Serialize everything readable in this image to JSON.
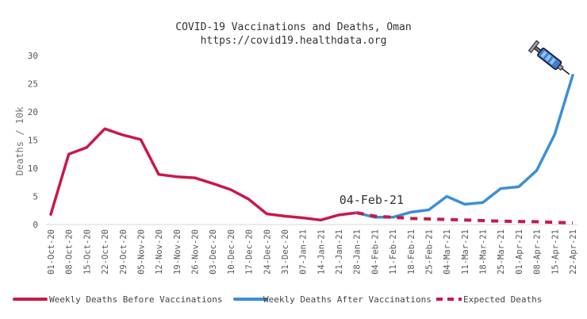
{
  "chart_data": {
    "type": "line",
    "title_line1": "COVID-19 Vaccinations and Deaths, Oman",
    "title_line2": "https://covid19.healthdata.org",
    "xlabel": "",
    "ylabel": "Deaths / 10k",
    "ylim": [
      0,
      30
    ],
    "yticks": [
      0,
      5,
      10,
      15,
      20,
      25,
      30
    ],
    "grid": false,
    "legend_position": "bottom",
    "categories": [
      "01-Oct-20",
      "08-Oct-20",
      "15-Oct-20",
      "22-Oct-20",
      "29-Oct-20",
      "05-Nov-20",
      "12-Nov-20",
      "19-Nov-20",
      "26-Nov-20",
      "03-Dec-20",
      "10-Dec-20",
      "17-Dec-20",
      "24-Dec-20",
      "31-Dec-20",
      "07-Jan-21",
      "14-Jan-21",
      "21-Jan-21",
      "28-Jan-21",
      "04-Feb-21",
      "11-Feb-21",
      "18-Feb-21",
      "25-Feb-21",
      "04-Mar-21",
      "11-Mar-21",
      "18-Mar-21",
      "25-Mar-21",
      "01-Apr-21",
      "08-Apr-21",
      "15-Apr-21",
      "22-Apr-21"
    ],
    "series": [
      {
        "name": "Weekly Deaths Before Vaccinations",
        "color": "#c8184a",
        "style": "solid",
        "values": [
          1.8,
          12.5,
          13.7,
          17.0,
          15.9,
          15.1,
          8.9,
          8.5,
          8.3,
          7.3,
          6.2,
          4.5,
          1.9,
          1.5,
          1.2,
          0.8,
          1.7,
          2.1,
          null,
          null,
          null,
          null,
          null,
          null,
          null,
          null,
          null,
          null,
          null,
          null
        ]
      },
      {
        "name": "Weekly Deaths After Vaccinations",
        "color": "#3b8fd8",
        "style": "solid",
        "values": [
          null,
          null,
          null,
          null,
          null,
          null,
          null,
          null,
          null,
          null,
          null,
          null,
          null,
          null,
          null,
          null,
          null,
          2.1,
          1.3,
          1.3,
          2.2,
          2.6,
          5.0,
          3.6,
          3.9,
          6.4,
          6.7,
          9.6,
          16.0,
          26.5
        ]
      },
      {
        "name": "Expected Deaths",
        "color": "#c8184a",
        "style": "dashed",
        "values": [
          null,
          null,
          null,
          null,
          null,
          null,
          null,
          null,
          null,
          null,
          null,
          null,
          null,
          null,
          null,
          null,
          null,
          2.1,
          1.5,
          1.3,
          1.1,
          1.0,
          0.9,
          0.8,
          0.7,
          0.6,
          0.55,
          0.5,
          0.4,
          0.3
        ]
      }
    ],
    "annotations": [
      {
        "text": "04-Feb-21",
        "category": "04-Feb-21"
      }
    ],
    "icon": "syringe-icon"
  }
}
